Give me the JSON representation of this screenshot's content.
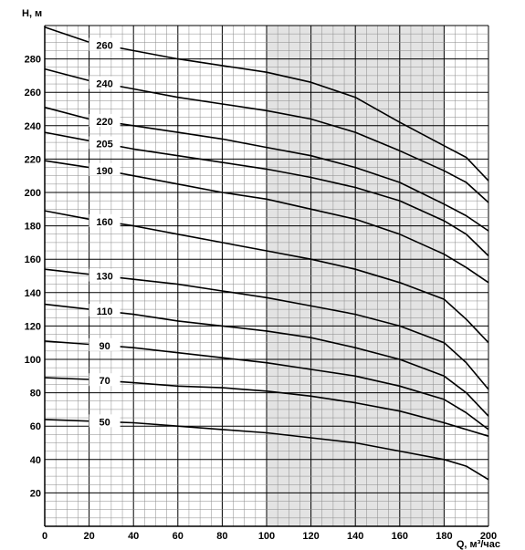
{
  "chart_data": {
    "type": "line",
    "title": "",
    "xlabel": "Q, м³/час",
    "ylabel": "H, м",
    "xlim": [
      0,
      200
    ],
    "ylim": [
      0,
      300
    ],
    "x_ticks": [
      "0",
      "20",
      "40",
      "60",
      "80",
      "100",
      "120",
      "140",
      "160",
      "180",
      "200"
    ],
    "y_ticks": [
      "20",
      "40",
      "60",
      "80",
      "100",
      "120",
      "140",
      "160",
      "180",
      "200",
      "220",
      "240",
      "260",
      "280"
    ],
    "grid": true,
    "highlight_range_x": [
      100,
      180
    ],
    "series": [
      {
        "name": "260",
        "x": [
          0,
          20,
          40,
          60,
          80,
          100,
          120,
          140,
          160,
          180,
          190,
          200
        ],
        "y": [
          299,
          290,
          285,
          280,
          276,
          272,
          266,
          257,
          242,
          228,
          221,
          207
        ]
      },
      {
        "name": "240",
        "x": [
          0,
          20,
          40,
          60,
          80,
          100,
          120,
          140,
          160,
          180,
          190,
          200
        ],
        "y": [
          274,
          267,
          262,
          257,
          253,
          249,
          244,
          236,
          225,
          213,
          206,
          194
        ]
      },
      {
        "name": "220",
        "x": [
          0,
          20,
          40,
          60,
          80,
          100,
          120,
          140,
          160,
          180,
          190,
          200
        ],
        "y": [
          251,
          244,
          240,
          236,
          232,
          227,
          222,
          215,
          206,
          193,
          186,
          177
        ]
      },
      {
        "name": "205",
        "x": [
          0,
          20,
          40,
          60,
          80,
          100,
          120,
          140,
          160,
          180,
          190,
          200
        ],
        "y": [
          236,
          231,
          226,
          222,
          218,
          214,
          209,
          203,
          195,
          183,
          175,
          162
        ]
      },
      {
        "name": "190",
        "x": [
          0,
          20,
          40,
          60,
          80,
          100,
          120,
          140,
          160,
          180,
          190,
          200
        ],
        "y": [
          219,
          215,
          210,
          205,
          200,
          196,
          190,
          184,
          175,
          163,
          155,
          146
        ]
      },
      {
        "name": "160",
        "x": [
          0,
          20,
          40,
          60,
          80,
          100,
          120,
          140,
          160,
          180,
          190,
          200
        ],
        "y": [
          189,
          184,
          180,
          175,
          170,
          165,
          160,
          154,
          146,
          136,
          124,
          110
        ]
      },
      {
        "name": "130",
        "x": [
          0,
          20,
          40,
          60,
          80,
          100,
          120,
          140,
          160,
          180,
          190,
          200
        ],
        "y": [
          154,
          151,
          148,
          145,
          141,
          137,
          132,
          127,
          120,
          110,
          98,
          82
        ]
      },
      {
        "name": "110",
        "x": [
          0,
          20,
          40,
          60,
          80,
          100,
          120,
          140,
          160,
          180,
          190,
          200
        ],
        "y": [
          133,
          130,
          127,
          123,
          120,
          117,
          113,
          107,
          100,
          90,
          80,
          66
        ]
      },
      {
        "name": "90",
        "x": [
          0,
          20,
          40,
          60,
          80,
          100,
          120,
          140,
          160,
          180,
          190,
          200
        ],
        "y": [
          111,
          109,
          107,
          104,
          101,
          98,
          94,
          90,
          84,
          76,
          68,
          58
        ]
      },
      {
        "name": "70",
        "x": [
          0,
          20,
          40,
          60,
          80,
          100,
          120,
          140,
          160,
          180,
          190,
          200
        ],
        "y": [
          89,
          88,
          86,
          84,
          83,
          81,
          78,
          74,
          69,
          62,
          58,
          54
        ]
      },
      {
        "name": "50",
        "x": [
          0,
          20,
          40,
          60,
          80,
          100,
          120,
          140,
          160,
          180,
          190,
          200
        ],
        "y": [
          64,
          63,
          62,
          60,
          58,
          56,
          53,
          50,
          45,
          40,
          36,
          28
        ]
      }
    ]
  }
}
